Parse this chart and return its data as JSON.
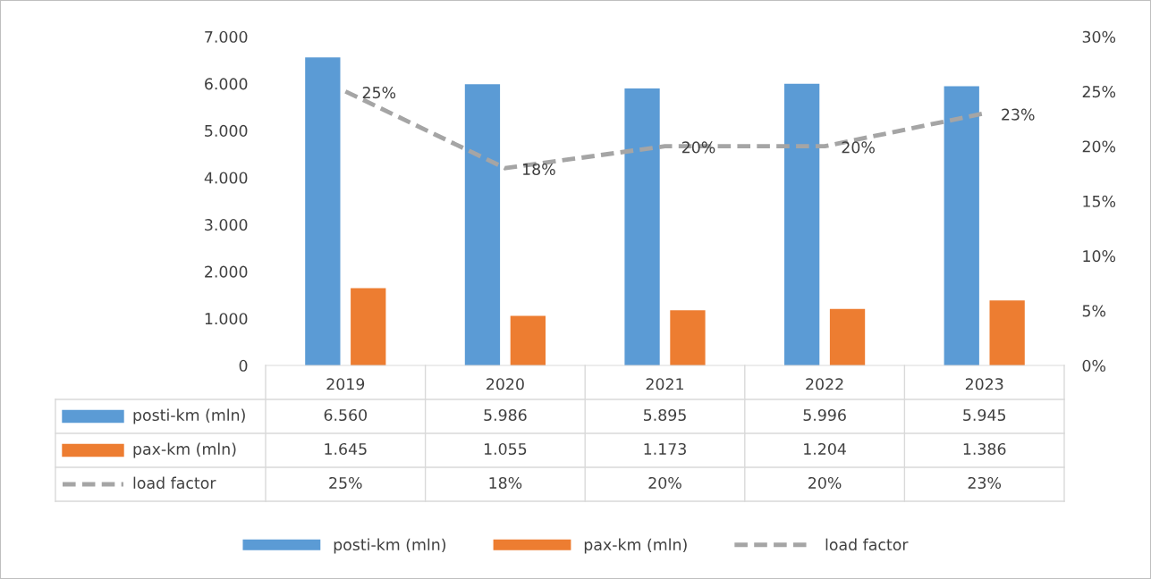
{
  "chart_data": {
    "type": "bar",
    "categories": [
      "2019",
      "2020",
      "2021",
      "2022",
      "2023"
    ],
    "series": [
      {
        "name": "posti-km (mln)",
        "color": "#5b9bd5",
        "values": [
          6560,
          5986,
          5895,
          5996,
          5945
        ],
        "value_labels": [
          "6.560",
          "5.986",
          "5.895",
          "5.996",
          "5.945"
        ]
      },
      {
        "name": "pax-km (mln)",
        "color": "#ed7d31",
        "values": [
          1645,
          1055,
          1173,
          1204,
          1386
        ],
        "value_labels": [
          "1.645",
          "1.055",
          "1.173",
          "1.204",
          "1.386"
        ]
      },
      {
        "name": "load factor",
        "type": "line",
        "axis": "y2",
        "line_style": "dashed",
        "color": "#a5a5a5",
        "values": [
          25,
          18,
          20,
          20,
          23
        ],
        "value_labels": [
          "25%",
          "18%",
          "20%",
          "20%",
          "23%"
        ]
      }
    ],
    "ylim": [
      0,
      7000
    ],
    "yticks": [
      {
        "value": 0,
        "label": "0"
      },
      {
        "value": 1000,
        "label": "1.000"
      },
      {
        "value": 2000,
        "label": "2.000"
      },
      {
        "value": 3000,
        "label": "3.000"
      },
      {
        "value": 4000,
        "label": "4.000"
      },
      {
        "value": 5000,
        "label": "5.000"
      },
      {
        "value": 6000,
        "label": "6.000"
      },
      {
        "value": 7000,
        "label": "7.000"
      }
    ],
    "y2lim": [
      0,
      30
    ],
    "y2ticks": [
      {
        "value": 0,
        "label": "0%"
      },
      {
        "value": 5,
        "label": "5%"
      },
      {
        "value": 10,
        "label": "10%"
      },
      {
        "value": 15,
        "label": "15%"
      },
      {
        "value": 20,
        "label": "20%"
      },
      {
        "value": 25,
        "label": "25%"
      },
      {
        "value": 30,
        "label": "30%"
      }
    ],
    "legend": "bottom"
  }
}
